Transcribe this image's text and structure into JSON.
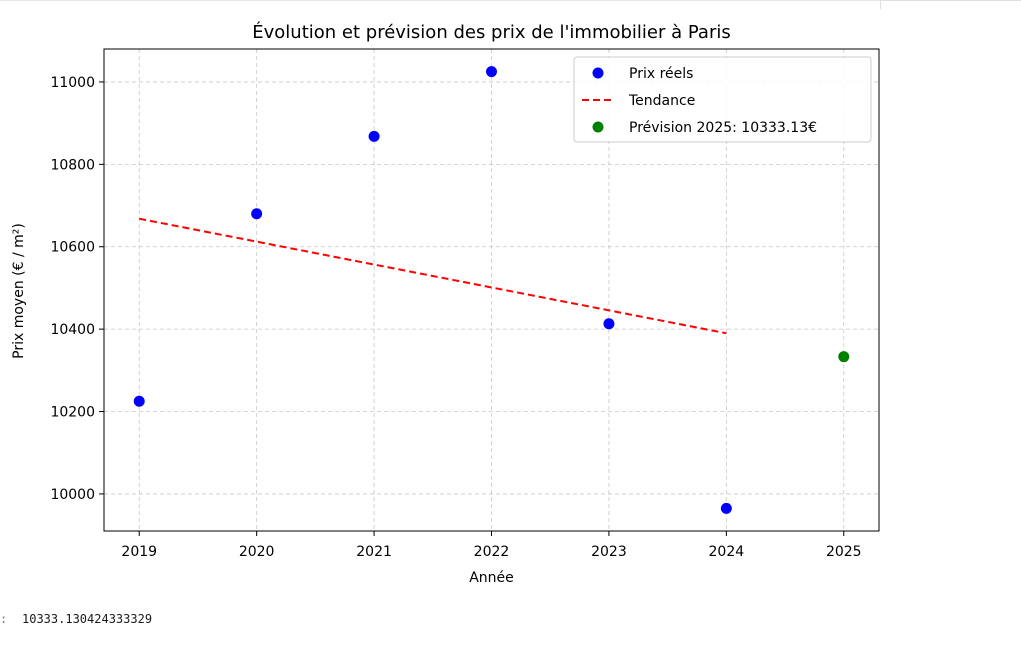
{
  "chart_data": {
    "type": "scatter",
    "title": "Évolution et prévision des prix de l'immobilier à Paris",
    "xlabel": "Année",
    "ylabel": "Prix moyen (€ / m²)",
    "xlim": [
      2018.7,
      2025.3
    ],
    "ylim": [
      9910,
      11080
    ],
    "x_ticks": [
      2019,
      2020,
      2021,
      2022,
      2023,
      2024,
      2025
    ],
    "y_ticks": [
      10000,
      10200,
      10400,
      10600,
      10800,
      11000
    ],
    "grid": true,
    "legend_position": "top-right",
    "series": [
      {
        "name": "Prix réels",
        "kind": "scatter",
        "color": "#0000ff",
        "x": [
          2019,
          2020,
          2021,
          2022,
          2023,
          2024
        ],
        "y": [
          10225,
          10680,
          10868,
          11025,
          10413,
          9965
        ]
      },
      {
        "name": "Tendance",
        "kind": "dashed-line",
        "color": "#ff0000",
        "x": [
          2019,
          2024
        ],
        "y": [
          10668,
          10390
        ]
      },
      {
        "name": "Prévision 2025: 10333.13€",
        "kind": "scatter",
        "color": "#008000",
        "x": [
          2025
        ],
        "y": [
          10333.13
        ]
      }
    ]
  },
  "output": {
    "prompt": ":",
    "value": "10333.130424333329"
  }
}
